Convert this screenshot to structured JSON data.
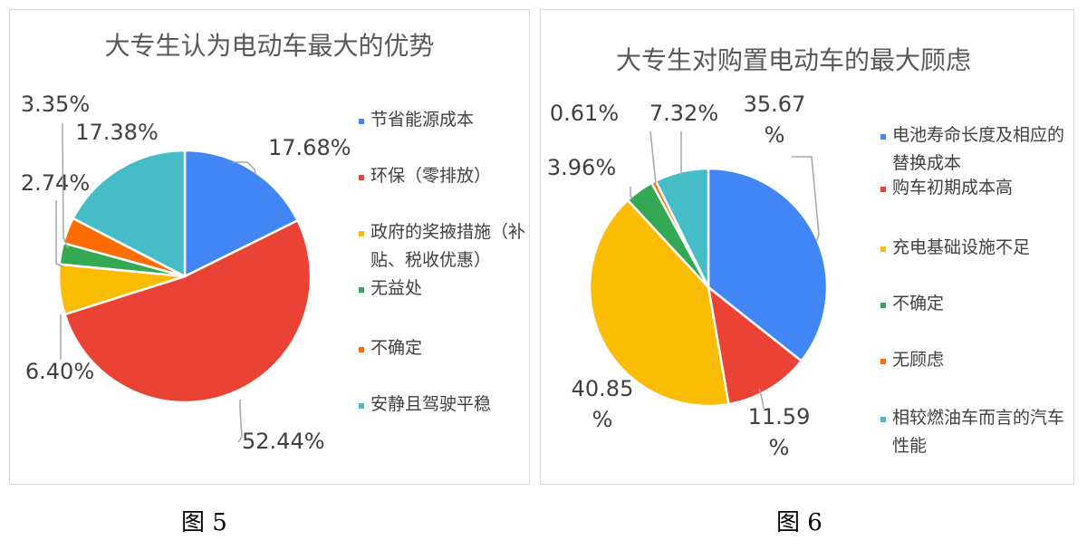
{
  "figures": [
    {
      "caption": "图 5",
      "chart_data": {
        "type": "pie",
        "title": "大专生认为电动车最大的优势",
        "legend": "right",
        "slices": [
          {
            "label": "节省能源成本",
            "value": 17.68,
            "text": "17.68%",
            "color": "#4285F4"
          },
          {
            "label": "环保（零排放）",
            "value": 52.44,
            "text": "52.44%",
            "color": "#EA4335"
          },
          {
            "label": "政府的奖掖措施（补贴、税收优惠）",
            "value": 6.4,
            "text": "6.40%",
            "color": "#FBBC04"
          },
          {
            "label": "无益处",
            "value": 2.74,
            "text": "2.74%",
            "color": "#34A853"
          },
          {
            "label": "不确定",
            "value": 3.35,
            "text": "3.35%",
            "color": "#FF6D01"
          },
          {
            "label": "安静且驾驶平稳",
            "value": 17.38,
            "text": "17.38%",
            "color": "#46BDC6"
          }
        ]
      }
    },
    {
      "caption": "图 6",
      "chart_data": {
        "type": "pie",
        "title": "大专生对购置电动车的最大顾虑",
        "legend": "right",
        "slices": [
          {
            "label": "电池寿命长度及相应的替换成本",
            "value": 35.67,
            "text": "35.67%",
            "color": "#4285F4"
          },
          {
            "label": "购车初期成本高",
            "value": 11.59,
            "text": "11.59%",
            "color": "#EA4335"
          },
          {
            "label": "充电基础设施不足",
            "value": 40.85,
            "text": "40.85%",
            "color": "#FBBC04"
          },
          {
            "label": "不确定",
            "value": 3.96,
            "text": "3.96%",
            "color": "#34A853"
          },
          {
            "label": "无顾虑",
            "value": 0.61,
            "text": "0.61%",
            "color": "#FF6D01"
          },
          {
            "label": "相较燃油车而言的汽车性能",
            "value": 7.32,
            "text": "7.32%",
            "color": "#46BDC6"
          }
        ]
      }
    }
  ]
}
